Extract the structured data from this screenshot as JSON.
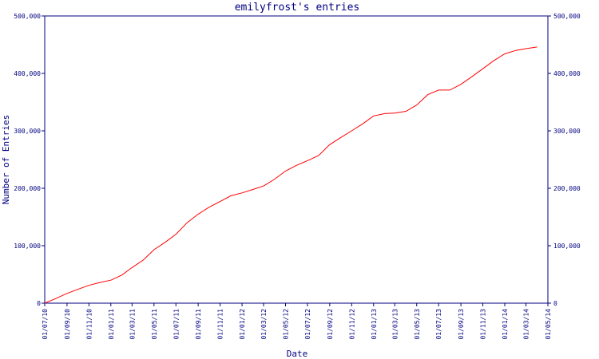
{
  "colors": {
    "axis": "#000080",
    "series": "#ff0000",
    "background": "#ffffff"
  },
  "chart_data": {
    "type": "line",
    "title": "emilyfrost's entries",
    "xlabel": "Date",
    "ylabel": "Number of Entries",
    "ylim": [
      0,
      500000
    ],
    "y_ticks": [
      "0",
      "100,000",
      "200,000",
      "300,000",
      "400,000",
      "500,000"
    ],
    "y_tick_values": [
      0,
      100000,
      200000,
      300000,
      400000,
      500000
    ],
    "right_axis": true,
    "grid": false,
    "x_ticks": [
      "01/07/10",
      "01/09/10",
      "01/11/10",
      "01/01/11",
      "01/03/11",
      "01/05/11",
      "01/07/11",
      "01/09/11",
      "01/11/11",
      "01/01/12",
      "01/03/12",
      "01/05/12",
      "01/07/12",
      "01/09/12",
      "01/11/12",
      "01/01/13",
      "01/03/13",
      "01/05/13",
      "01/07/13",
      "01/09/13",
      "01/11/13",
      "01/01/14",
      "01/03/14",
      "01/05/14"
    ],
    "series": [
      {
        "x": [
          "01/07/10",
          "01/08/10",
          "01/09/10",
          "01/10/10",
          "01/11/10",
          "01/12/10",
          "01/01/11",
          "01/02/11",
          "01/03/11",
          "01/04/11",
          "01/05/11",
          "01/06/11",
          "01/07/11",
          "01/08/11",
          "01/09/11",
          "01/10/11",
          "01/11/11",
          "01/12/11",
          "01/01/12",
          "01/02/12",
          "01/03/12",
          "01/04/12",
          "01/05/12",
          "01/06/12",
          "01/07/12",
          "01/08/12",
          "01/09/12",
          "01/10/12",
          "01/11/12",
          "01/12/12",
          "01/01/13",
          "01/02/13",
          "01/03/13",
          "01/04/13",
          "01/05/13",
          "01/06/13",
          "01/07/13",
          "01/08/13",
          "01/09/13",
          "01/10/13",
          "01/11/13",
          "01/12/13",
          "01/01/14",
          "01/02/14",
          "01/03/14",
          "01/04/14"
        ],
        "values": [
          0,
          8000,
          17000,
          24000,
          31000,
          36000,
          40000,
          49000,
          62000,
          75000,
          93000,
          106000,
          120000,
          140000,
          155000,
          167000,
          177000,
          187000,
          192000,
          198000,
          204000,
          216000,
          230000,
          240000,
          248000,
          257000,
          276000,
          288000,
          300000,
          312000,
          326000,
          330000,
          331000,
          334000,
          345000,
          363000,
          371000,
          371000,
          381000,
          394000,
          408000,
          422000,
          434000,
          440000,
          443000,
          446000
        ]
      }
    ]
  }
}
